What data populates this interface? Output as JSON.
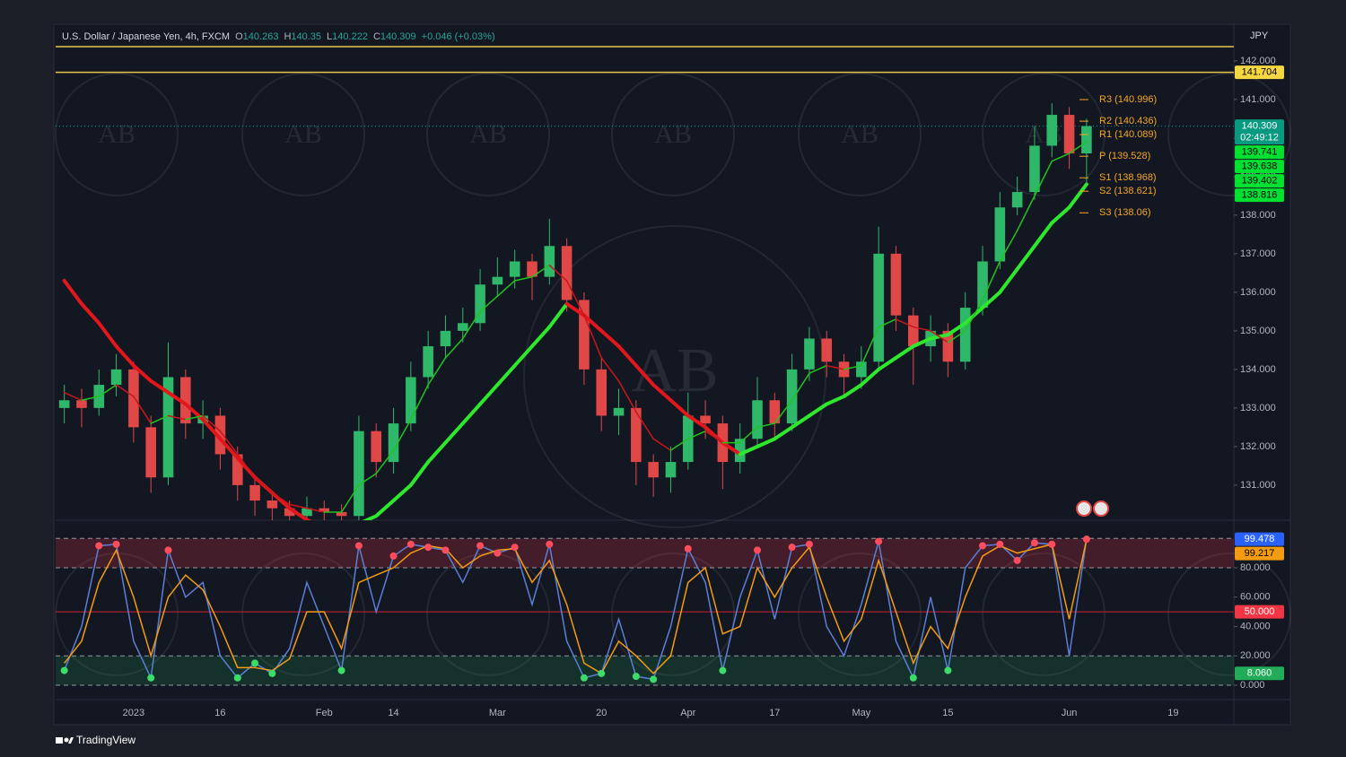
{
  "chart_data": [
    {
      "type": "candlestick",
      "symbol": "U.S. Dollar / Japanese Yen, 4h, FXCM",
      "ohlc": [
        {
          "label": "O",
          "value": 140.263
        },
        {
          "label": "H",
          "value": 140.35
        },
        {
          "label": "L",
          "value": 140.222
        },
        {
          "label": "C",
          "value": 140.309
        }
      ],
      "change": "+0.046 (+0.03%)",
      "currency": "JPY",
      "countdown": "02:49:12",
      "watermark": "AB",
      "brand": "TradingView",
      "categories": [
        null,
        null,
        null,
        null,
        "2023",
        null,
        null,
        null,
        null,
        "16",
        null,
        null,
        null,
        null,
        null,
        "Feb",
        null,
        null,
        null,
        "14",
        null,
        null,
        null,
        null,
        null,
        "Mar",
        null,
        null,
        null,
        null,
        null,
        "20",
        null,
        null,
        null,
        null,
        "Apr",
        null,
        null,
        null,
        null,
        "17",
        null,
        null,
        null,
        null,
        "May",
        null,
        null,
        null,
        null,
        "15",
        null,
        null,
        null,
        null,
        null,
        null,
        "Jun",
        null,
        null,
        null,
        null,
        null,
        "19",
        null,
        null,
        null
      ],
      "open": [
        133.0,
        133.2,
        133.0,
        133.6,
        134.0,
        132.5,
        131.2,
        133.8,
        132.6,
        132.8,
        131.8,
        131.0,
        130.6,
        130.4,
        130.2,
        130.4,
        130.3,
        130.2,
        132.4,
        131.6,
        132.6,
        133.8,
        134.6,
        135.0,
        135.2,
        136.2,
        136.4,
        136.8,
        136.4,
        137.2,
        135.8,
        134.0,
        132.8,
        133.0,
        131.6,
        131.2,
        131.6,
        132.8,
        132.6,
        131.6,
        132.2,
        133.2,
        132.6,
        134.0,
        134.8,
        134.2,
        133.8,
        134.2,
        137.0,
        135.4,
        134.6,
        135.0,
        134.2,
        135.6,
        136.8,
        138.2,
        138.6,
        139.8,
        140.6,
        139.6,
        null,
        null,
        null,
        null,
        null,
        null,
        null,
        null
      ],
      "high": [
        133.6,
        133.5,
        134.0,
        134.4,
        134.2,
        132.8,
        134.7,
        134.0,
        133.2,
        133.0,
        132.0,
        131.2,
        130.8,
        130.6,
        130.7,
        130.6,
        130.5,
        132.8,
        132.6,
        133.0,
        134.2,
        135.0,
        135.4,
        135.6,
        136.6,
        136.9,
        137.1,
        137.0,
        137.9,
        137.4,
        136.0,
        134.3,
        133.5,
        133.2,
        131.8,
        132.0,
        133.4,
        133.2,
        132.8,
        132.6,
        133.8,
        133.4,
        134.4,
        135.1,
        135.0,
        134.4,
        134.6,
        137.7,
        137.2,
        135.6,
        135.4,
        135.2,
        136.0,
        137.2,
        138.6,
        139.0,
        140.3,
        140.9,
        140.8,
        140.5,
        null,
        null,
        null,
        null,
        null,
        null,
        null,
        null
      ],
      "low": [
        132.6,
        132.5,
        132.8,
        133.3,
        132.1,
        130.8,
        131.0,
        132.2,
        132.2,
        131.4,
        130.6,
        130.2,
        130.0,
        129.8,
        129.9,
        129.9,
        129.8,
        130.0,
        131.2,
        131.3,
        132.4,
        133.5,
        134.3,
        134.7,
        135.0,
        135.9,
        136.1,
        135.8,
        136.2,
        135.5,
        133.6,
        132.4,
        132.3,
        131.0,
        130.7,
        130.8,
        131.4,
        132.2,
        130.9,
        131.3,
        132.0,
        132.2,
        132.4,
        133.7,
        133.8,
        133.3,
        133.5,
        134.0,
        135.0,
        133.6,
        134.2,
        133.8,
        134.0,
        135.4,
        136.6,
        138.0,
        138.4,
        139.5,
        139.2,
        138.8,
        null,
        null,
        null,
        null,
        null,
        null,
        null,
        null
      ],
      "close": [
        133.2,
        133.0,
        133.6,
        134.0,
        132.5,
        131.2,
        133.8,
        132.6,
        132.8,
        131.8,
        131.0,
        130.6,
        130.4,
        130.2,
        130.4,
        130.3,
        130.2,
        132.4,
        131.6,
        132.6,
        133.8,
        134.6,
        135.0,
        135.2,
        136.2,
        136.4,
        136.8,
        136.4,
        137.2,
        135.8,
        134.0,
        132.8,
        133.0,
        131.6,
        131.2,
        131.6,
        132.8,
        132.6,
        131.6,
        132.2,
        133.2,
        132.6,
        134.0,
        134.8,
        134.2,
        133.8,
        134.2,
        137.0,
        135.4,
        134.6,
        135.0,
        134.2,
        135.6,
        136.8,
        138.2,
        138.6,
        139.8,
        140.6,
        139.6,
        140.309,
        null,
        null,
        null,
        null,
        null,
        null,
        null,
        null
      ],
      "up_color": "#2fb86a",
      "down_color": "#e04848",
      "series": [
        {
          "values": [
            136.3,
            135.7,
            135.2,
            134.6,
            134.1,
            133.7,
            133.4,
            133.1,
            132.7,
            132.2,
            131.7,
            131.2,
            130.8,
            130.4,
            130.1,
            129.9,
            129.8,
            130.0,
            130.2,
            130.6,
            131.0,
            131.6,
            132.1,
            132.6,
            133.1,
            133.6,
            134.1,
            134.6,
            135.1,
            135.7,
            135.4,
            135.0,
            134.6,
            134.1,
            133.6,
            133.2,
            132.8,
            132.5,
            132.1,
            131.8,
            132.0,
            132.2,
            132.5,
            132.8,
            133.1,
            133.3,
            133.6,
            134.0,
            134.3,
            134.6,
            134.8,
            134.9,
            135.2,
            135.6,
            136.0,
            136.6,
            137.2,
            137.8,
            138.2,
            138.8,
            null,
            null,
            null,
            null,
            null,
            null,
            null,
            null
          ],
          "rise_color": "#2ee82e",
          "fall_color": "#e3171b",
          "width": 4
        },
        {
          "values": [
            133.4,
            133.2,
            133.3,
            133.6,
            133.3,
            132.6,
            132.8,
            132.7,
            132.8,
            132.4,
            131.8,
            131.2,
            130.8,
            130.5,
            130.4,
            130.3,
            130.3,
            131.0,
            131.3,
            131.9,
            132.7,
            133.6,
            134.3,
            134.8,
            135.5,
            135.9,
            136.3,
            136.4,
            136.7,
            136.3,
            135.4,
            134.3,
            133.7,
            132.9,
            132.2,
            131.9,
            132.2,
            132.4,
            132.1,
            132.1,
            132.5,
            132.6,
            133.2,
            133.9,
            134.1,
            134.0,
            134.1,
            135.1,
            135.3,
            135.1,
            135.0,
            134.7,
            135.0,
            135.8,
            136.8,
            137.6,
            138.5,
            139.4,
            139.6,
            139.9,
            null,
            null,
            null,
            null,
            null,
            null,
            null,
            null
          ],
          "rise_color": "#1fc41f",
          "fall_color": "#c8161a",
          "width": 1.5
        }
      ],
      "horizontal_lines": [
        142.37,
        141.704
      ],
      "hline_color": "#e8c547",
      "pivots": [
        {
          "label": "R3 (140.996)",
          "value": 140.996
        },
        {
          "label": "R2 (140.436)",
          "value": 140.436
        },
        {
          "label": "R1 (140.089)",
          "value": 140.089
        },
        {
          "label": "P (139.528)",
          "value": 139.528
        },
        {
          "label": "S1 (138.968)",
          "value": 138.968
        },
        {
          "label": "S2 (138.621)",
          "value": 138.621
        },
        {
          "label": "S3 (138.06)",
          "value": 138.06
        }
      ],
      "pivot_color": "#f5a623",
      "right_labels": [
        {
          "value": 141.704,
          "color": "#f5d742",
          "text_color": "#000000"
        },
        {
          "value": 140.309,
          "color": "#089981",
          "text_color": "#ffffff"
        },
        {
          "value": 139.741,
          "color": "#00e030",
          "text_color": "#000000"
        },
        {
          "value": 139.638,
          "color": "#00e030",
          "text_color": "#000000"
        },
        {
          "value": 139.402,
          "color": "#00e030",
          "text_color": "#000000"
        },
        {
          "value": 138.816,
          "color": "#00e030",
          "text_color": "#000000"
        }
      ],
      "ylim": [
        130.09,
        142.95
      ],
      "yticks": [
        {
          "value": 131,
          "label": "131.000"
        },
        {
          "value": 132,
          "label": "132.000"
        },
        {
          "value": 133,
          "label": "133.000"
        },
        {
          "value": 134,
          "label": "134.000"
        },
        {
          "value": 135,
          "label": "135.000"
        },
        {
          "value": 136,
          "label": "136.000"
        },
        {
          "value": 137,
          "label": "137.000"
        },
        {
          "value": 138,
          "label": "138.000"
        },
        {
          "value": 139,
          "label": "139.000"
        },
        {
          "value": 140,
          "label": "140.000"
        },
        {
          "value": 141,
          "label": "141.000"
        },
        {
          "value": 142,
          "label": "142.000"
        }
      ]
    },
    {
      "type": "oscillator",
      "series": [
        {
          "color": "#5b7fd6",
          "values": [
            10,
            40,
            95,
            96,
            30,
            5,
            92,
            60,
            70,
            20,
            5,
            15,
            8,
            25,
            70,
            40,
            10,
            95,
            50,
            88,
            96,
            94,
            92,
            70,
            95,
            90,
            94,
            55,
            96,
            30,
            5,
            8,
            45,
            6,
            4,
            40,
            93,
            70,
            10,
            60,
            92,
            45,
            94,
            96,
            40,
            20,
            55,
            98,
            30,
            5,
            60,
            10,
            80,
            95,
            96,
            85,
            97,
            96,
            20,
            99.478,
            null,
            null,
            null,
            null,
            null,
            null,
            null,
            null
          ]
        },
        {
          "color": "#f39c12",
          "values": [
            15,
            30,
            70,
            92,
            60,
            20,
            60,
            75,
            65,
            40,
            12,
            12,
            10,
            18,
            50,
            50,
            25,
            70,
            75,
            80,
            90,
            95,
            93,
            80,
            88,
            92,
            93,
            70,
            85,
            55,
            15,
            8,
            30,
            20,
            8,
            20,
            70,
            80,
            35,
            40,
            80,
            60,
            80,
            94,
            60,
            30,
            45,
            85,
            50,
            15,
            40,
            25,
            60,
            88,
            95,
            90,
            93,
            96,
            45,
            99.217,
            null,
            null,
            null,
            null,
            null,
            null,
            null,
            null
          ]
        }
      ],
      "overbought": 80,
      "oversold": 20,
      "top": 100,
      "bottom": 0,
      "midline": 50,
      "overbought_color": "#ff4d5e",
      "oversold_color": "#3ddc68",
      "right_labels": [
        {
          "value": 99.478,
          "color": "#2962ff",
          "text_color": "#ffffff"
        },
        {
          "value": 99.217,
          "color": "#f39c12",
          "text_color": "#000000"
        },
        {
          "value": 50,
          "label": "50.000",
          "color": "#f23645",
          "text_color": "#ffffff"
        },
        {
          "value": 8.06,
          "label": "8.060",
          "color": "#22ab58",
          "text_color": "#ffffff"
        }
      ],
      "ylim": [
        -9.8,
        112.4
      ],
      "yticks": [
        {
          "value": 0,
          "label": "0.000"
        },
        {
          "value": 20,
          "label": "20.000"
        },
        {
          "value": 40,
          "label": "40.000"
        },
        {
          "value": 60,
          "label": "60.000"
        },
        {
          "value": 80,
          "label": "80.000"
        }
      ]
    }
  ]
}
